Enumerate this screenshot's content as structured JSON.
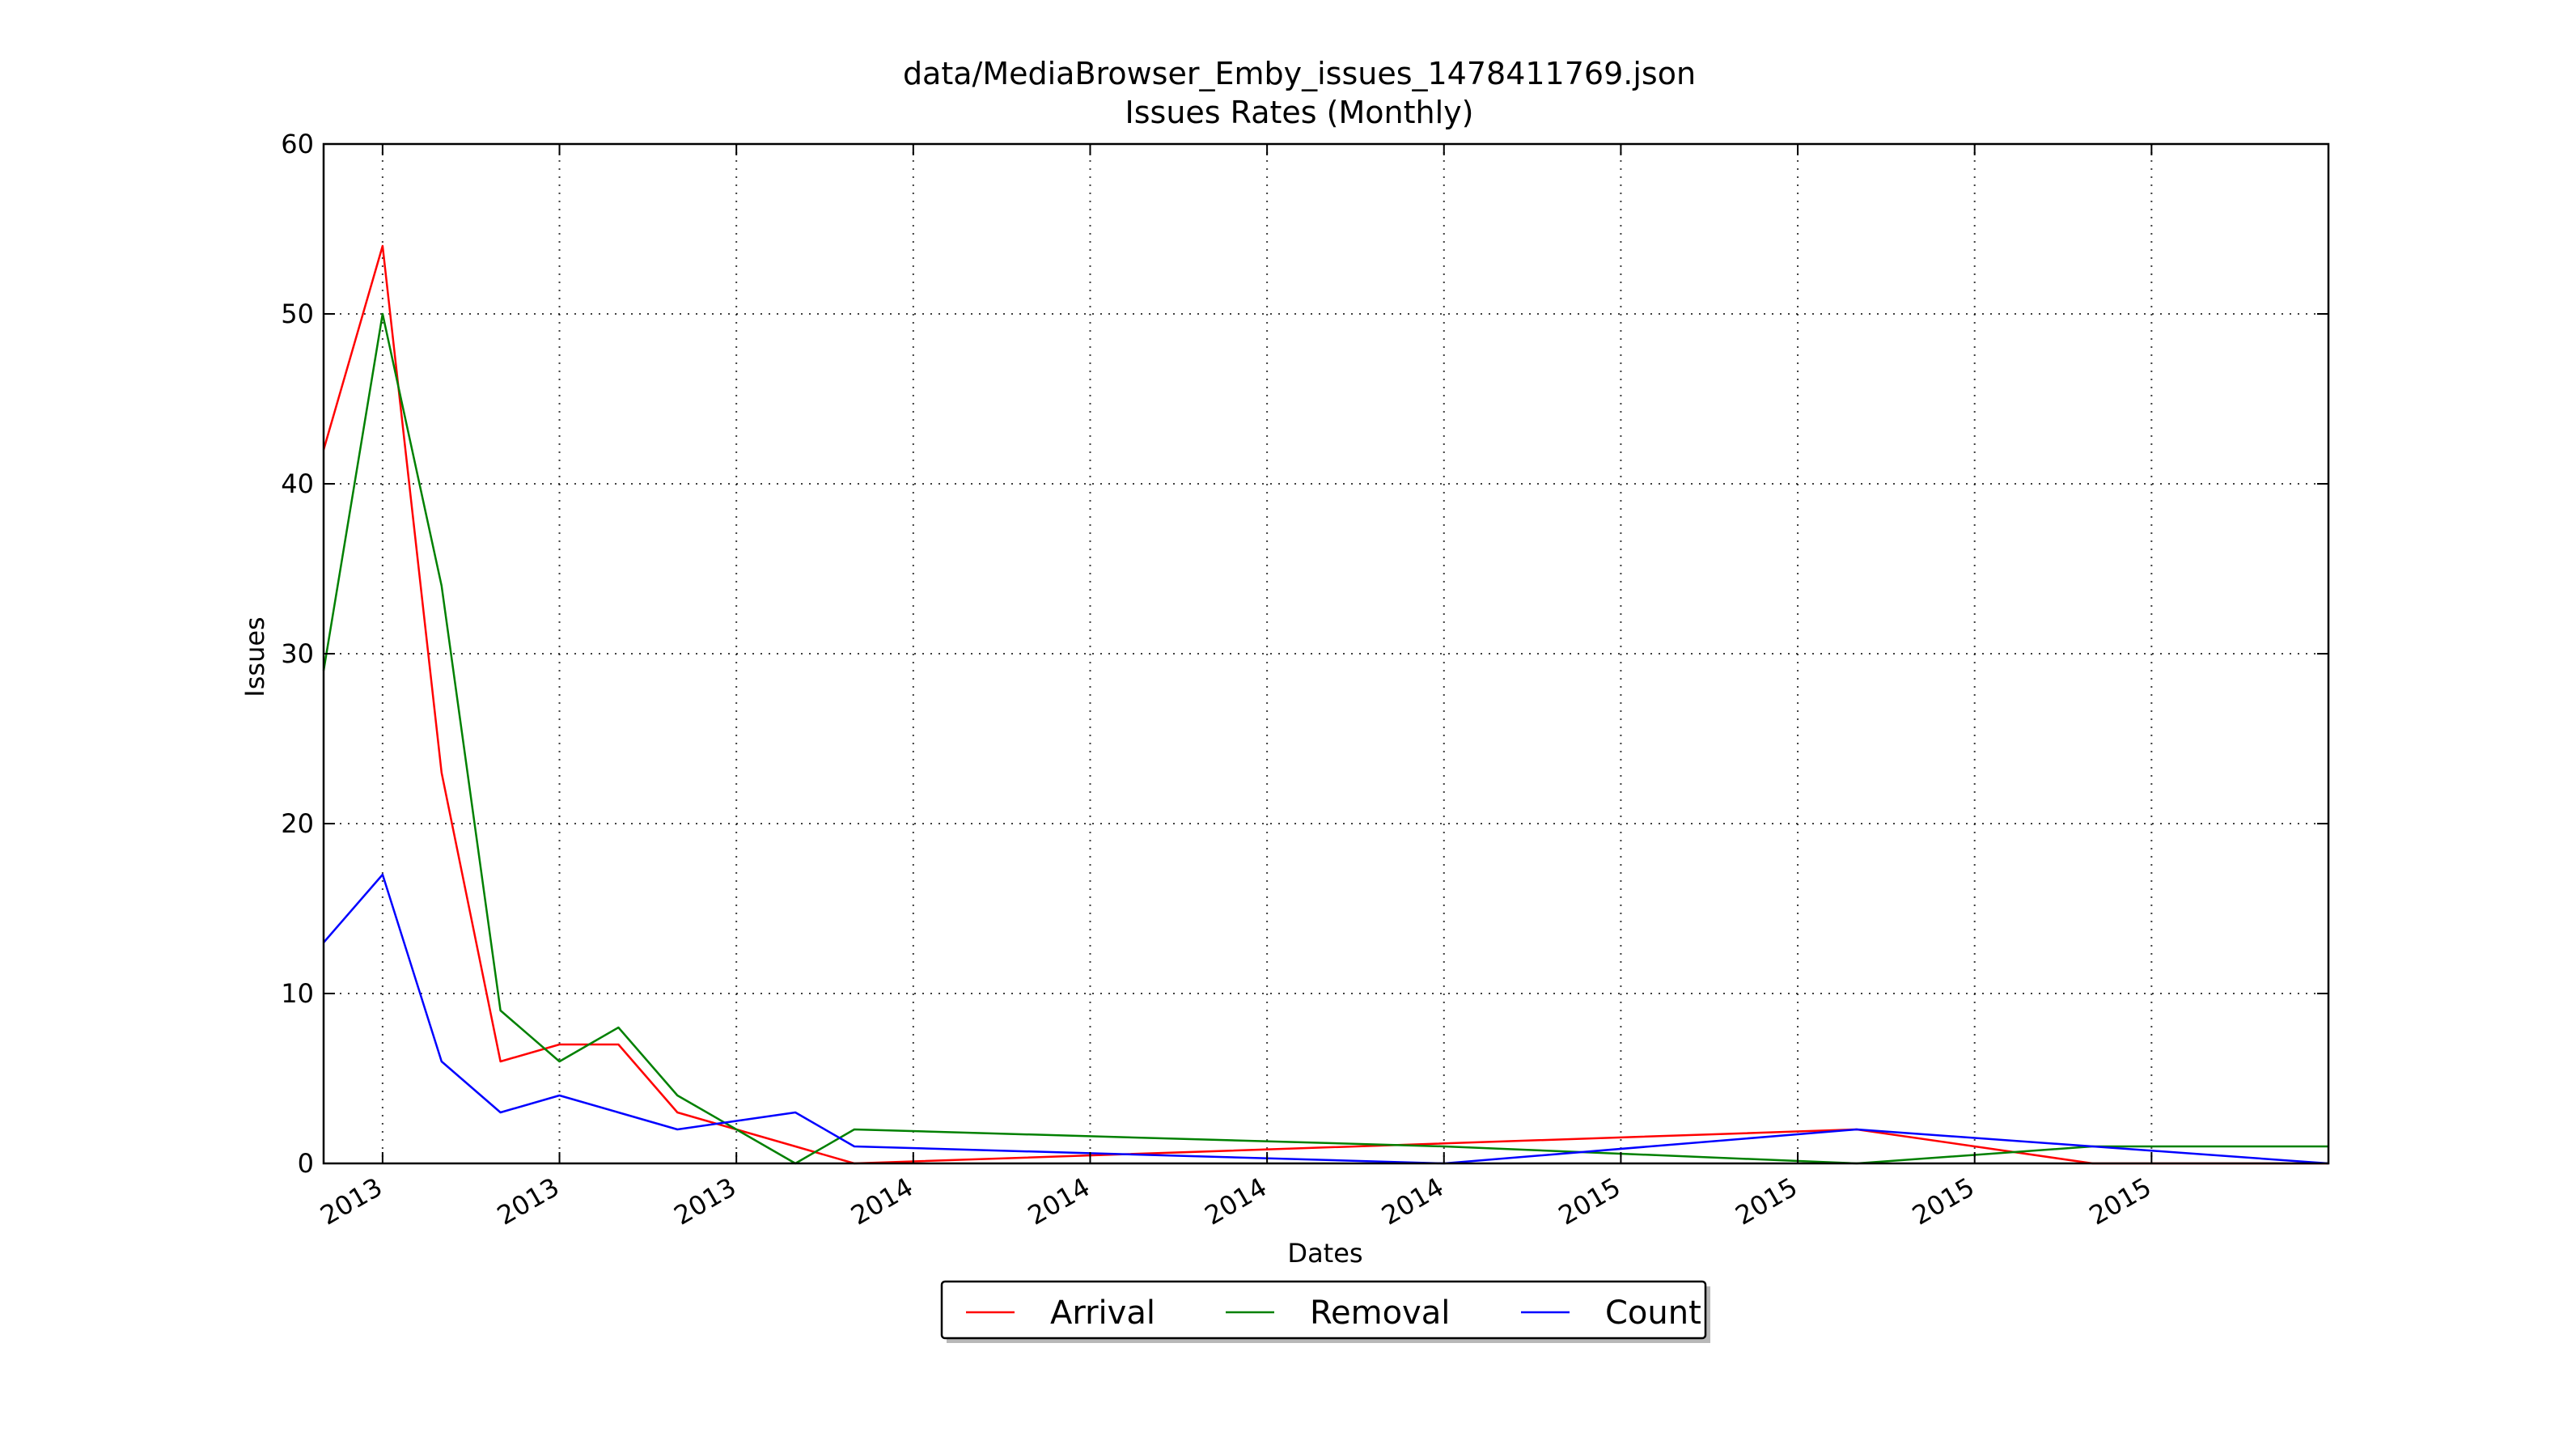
{
  "chart_data": {
    "type": "line",
    "title": "data/MediaBrowser_Emby_issues_1478411769.json",
    "subtitle": "Issues Rates (Monthly)",
    "xlabel": "Dates",
    "ylabel": "Issues",
    "ylim": [
      0,
      60
    ],
    "yticks": [
      0,
      10,
      20,
      30,
      40,
      50,
      60
    ],
    "xlim": [
      "2013-03",
      "2016-01"
    ],
    "xticks": [
      {
        "x": "2013-04",
        "label": "2013"
      },
      {
        "x": "2013-07",
        "label": "2013"
      },
      {
        "x": "2013-10",
        "label": "2013"
      },
      {
        "x": "2014-01",
        "label": "2014"
      },
      {
        "x": "2014-04",
        "label": "2014"
      },
      {
        "x": "2014-07",
        "label": "2014"
      },
      {
        "x": "2014-10",
        "label": "2014"
      },
      {
        "x": "2015-01",
        "label": "2015"
      },
      {
        "x": "2015-04",
        "label": "2015"
      },
      {
        "x": "2015-07",
        "label": "2015"
      },
      {
        "x": "2015-10",
        "label": "2015"
      }
    ],
    "grid": true,
    "legend_position": "bottom-center",
    "series": [
      {
        "name": "Arrival",
        "color": "#ff0000",
        "points": [
          {
            "x": "2013-03",
            "y": 42
          },
          {
            "x": "2013-04",
            "y": 54
          },
          {
            "x": "2013-05",
            "y": 23
          },
          {
            "x": "2013-06",
            "y": 6
          },
          {
            "x": "2013-07",
            "y": 7
          },
          {
            "x": "2013-08",
            "y": 7
          },
          {
            "x": "2013-09",
            "y": 3
          },
          {
            "x": "2013-10",
            "y": 2
          },
          {
            "x": "2013-11",
            "y": 1
          },
          {
            "x": "2013-12",
            "y": 0
          },
          {
            "x": "2015-05",
            "y": 2
          },
          {
            "x": "2015-09",
            "y": 0
          },
          {
            "x": "2016-01",
            "y": 0
          }
        ]
      },
      {
        "name": "Removal",
        "color": "#008000",
        "points": [
          {
            "x": "2013-03",
            "y": 29
          },
          {
            "x": "2013-04",
            "y": 50
          },
          {
            "x": "2013-05",
            "y": 34
          },
          {
            "x": "2013-06",
            "y": 9
          },
          {
            "x": "2013-07",
            "y": 6
          },
          {
            "x": "2013-08",
            "y": 8
          },
          {
            "x": "2013-09",
            "y": 4
          },
          {
            "x": "2013-10",
            "y": 2
          },
          {
            "x": "2013-11",
            "y": 0
          },
          {
            "x": "2013-12",
            "y": 2
          },
          {
            "x": "2014-10",
            "y": 1
          },
          {
            "x": "2015-05",
            "y": 0
          },
          {
            "x": "2015-09",
            "y": 1
          },
          {
            "x": "2016-01",
            "y": 1
          }
        ]
      },
      {
        "name": "Count",
        "color": "#0000ff",
        "points": [
          {
            "x": "2013-03",
            "y": 13
          },
          {
            "x": "2013-04",
            "y": 17
          },
          {
            "x": "2013-05",
            "y": 6
          },
          {
            "x": "2013-06",
            "y": 3
          },
          {
            "x": "2013-07",
            "y": 4
          },
          {
            "x": "2013-08",
            "y": 3
          },
          {
            "x": "2013-09",
            "y": 2
          },
          {
            "x": "2013-10",
            "y": 2.5
          },
          {
            "x": "2013-11",
            "y": 3
          },
          {
            "x": "2013-12",
            "y": 1
          },
          {
            "x": "2014-10",
            "y": 0
          },
          {
            "x": "2015-05",
            "y": 2
          },
          {
            "x": "2015-09",
            "y": 1
          },
          {
            "x": "2016-01",
            "y": 0
          }
        ]
      }
    ]
  }
}
